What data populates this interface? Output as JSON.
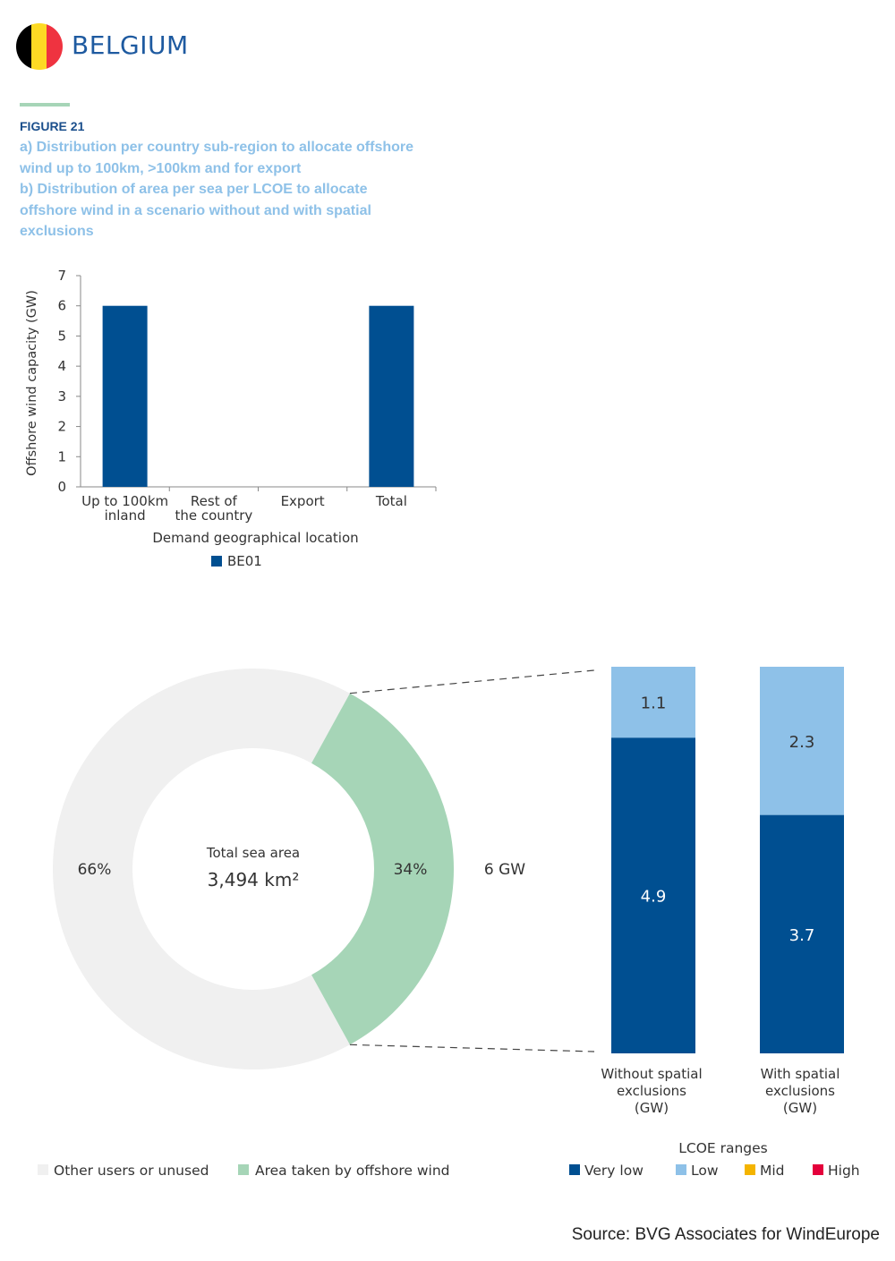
{
  "header": {
    "country": "BELGIUM",
    "figure_label": "FIGURE 21",
    "caption_a": [
      "a) Distribution per country sub-region to allocate offshore",
      "wind up to 100km, >100km and for export"
    ],
    "caption_b": [
      "b) Distribution of area per sea per LCOE to allocate",
      "offshore wind in a scenario without and with spatial",
      "exclusions"
    ],
    "flag_colors": [
      "#000000",
      "#fdda24",
      "#ef3340"
    ]
  },
  "source": "Source: BVG Associates for WindEurope",
  "chart_data": [
    {
      "type": "bar",
      "categories": [
        [
          "Up to 100km",
          "inland"
        ],
        [
          "Rest of",
          "the country"
        ],
        [
          "Export"
        ],
        [
          "Total"
        ]
      ],
      "series": [
        {
          "name": "BE01",
          "values": [
            6,
            0,
            0,
            6
          ],
          "color": "#004f91"
        }
      ],
      "xlabel": "Demand geographical location",
      "ylabel": "Offshore wind capacity (GW)",
      "ylim": [
        0,
        7
      ],
      "yticks": [
        0,
        1,
        2,
        3,
        4,
        5,
        6,
        7
      ],
      "legend": {
        "placement": "bottom",
        "entries": [
          "BE01"
        ]
      }
    },
    {
      "type": "pie",
      "subtype": "donut",
      "slices": [
        {
          "name": "Other users or unused",
          "value": 66,
          "label": "66%",
          "color": "#f0f0f0"
        },
        {
          "name": "Area taken by offshore wind",
          "value": 34,
          "label": "34%",
          "color": "#a6d5b7"
        }
      ],
      "center_title": "Total sea area",
      "center_value": "3,494 km²",
      "callout": "6 GW",
      "legend": {
        "placement": "bottom-left",
        "entries": [
          "Other users or unused",
          "Area taken by offshore wind"
        ]
      }
    },
    {
      "type": "bar",
      "stacked": true,
      "categories": [
        [
          "Without spatial",
          "exclusions",
          "(GW)"
        ],
        [
          "With spatial",
          "exclusions",
          "(GW)"
        ]
      ],
      "series": [
        {
          "name": "Very low",
          "values": [
            4.9,
            3.7
          ],
          "labels": [
            "4.9",
            "3.7"
          ],
          "color": "#004f91"
        },
        {
          "name": "Low",
          "values": [
            1.1,
            2.3
          ],
          "labels": [
            "1.1",
            "2.3"
          ],
          "color": "#8ec1e8"
        }
      ],
      "legend": {
        "title": "LCOE ranges",
        "placement": "bottom-right",
        "entries": [
          {
            "name": "Very low",
            "color": "#004f91"
          },
          {
            "name": "Low",
            "color": "#8ec1e8"
          },
          {
            "name": "Mid",
            "color": "#f4b400"
          },
          {
            "name": "High",
            "color": "#e4003b"
          }
        ]
      }
    }
  ]
}
